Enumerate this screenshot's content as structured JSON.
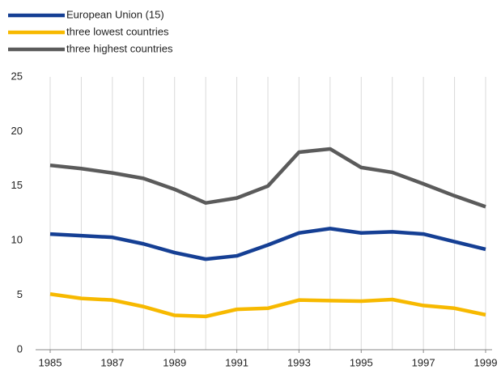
{
  "chart_data": {
    "type": "line",
    "x": [
      1985,
      1986,
      1987,
      1988,
      1989,
      1990,
      1991,
      1992,
      1993,
      1994,
      1995,
      1996,
      1997,
      1998,
      1999
    ],
    "series": [
      {
        "name": "European Union (15)",
        "color": "#153f94",
        "values": [
          10.6,
          10.45,
          10.3,
          9.7,
          8.9,
          8.3,
          8.6,
          9.6,
          10.7,
          11.1,
          10.7,
          10.8,
          10.6,
          9.9,
          9.2
        ]
      },
      {
        "name": "three lowest countries",
        "color": "#f7b900",
        "values": [
          5.1,
          4.7,
          4.55,
          3.95,
          3.15,
          3.05,
          3.7,
          3.8,
          4.55,
          4.5,
          4.45,
          4.6,
          4.05,
          3.8,
          3.2
        ]
      },
      {
        "name": "three highest countries",
        "color": "#5b5b5b",
        "values": [
          16.9,
          16.6,
          16.2,
          15.7,
          14.7,
          13.45,
          13.9,
          15.0,
          18.1,
          18.4,
          16.7,
          16.25,
          15.2,
          14.1,
          13.1
        ]
      }
    ],
    "xlim": [
      1985,
      1999
    ],
    "xticks": [
      1985,
      1987,
      1989,
      1991,
      1993,
      1995,
      1997,
      1999
    ],
    "ylim": [
      0,
      25
    ],
    "yticks": [
      0,
      5,
      10,
      15,
      20,
      25
    ],
    "grid": "x",
    "legend": "top-left"
  }
}
